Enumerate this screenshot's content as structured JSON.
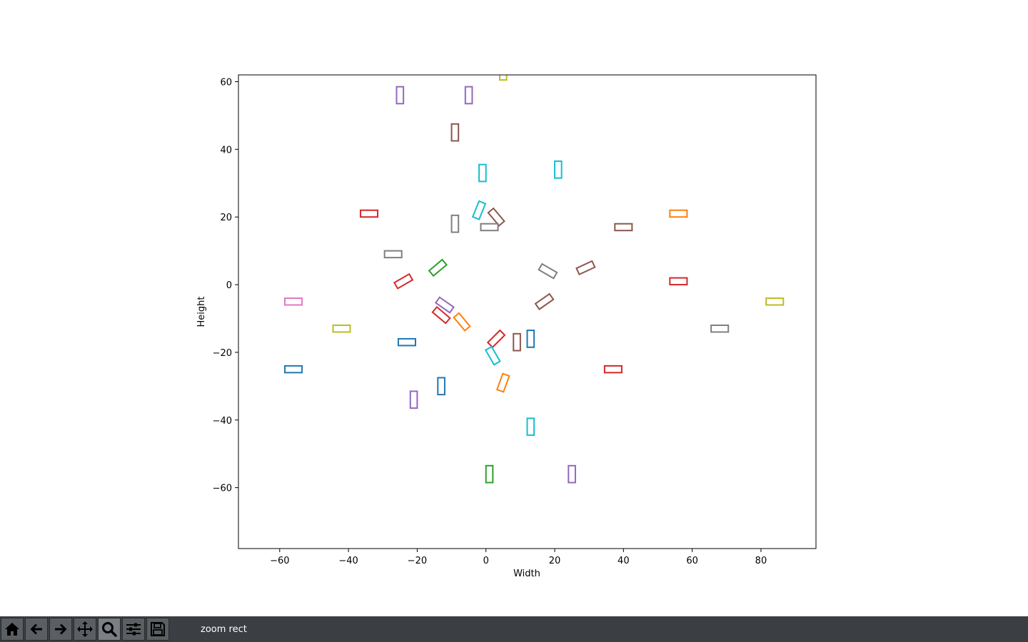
{
  "toolbar": {
    "buttons": [
      {
        "name": "home-button",
        "icon": "home-icon"
      },
      {
        "name": "back-button",
        "icon": "arrow-left-icon"
      },
      {
        "name": "forward-button",
        "icon": "arrow-right-icon"
      },
      {
        "name": "pan-button",
        "icon": "move-icon"
      },
      {
        "name": "zoom-button",
        "icon": "magnifier-icon",
        "active": true
      },
      {
        "name": "configure-subplots-button",
        "icon": "sliders-icon"
      },
      {
        "name": "save-button",
        "icon": "floppy-disk-icon"
      }
    ],
    "mode_text": "zoom rect"
  },
  "chart_data": {
    "type": "scatter",
    "title": "",
    "xlabel": "Width",
    "ylabel": "Height",
    "xlim": [
      -72,
      96
    ],
    "ylim": [
      -78,
      62
    ],
    "xticks": [
      -60,
      -40,
      -20,
      0,
      20,
      40,
      60,
      80
    ],
    "yticks": [
      -60,
      -40,
      -20,
      0,
      20,
      40,
      60
    ],
    "grid": false,
    "legend": null,
    "marker": "rectangle outline",
    "rectangles": [
      {
        "x": 5,
        "y": 62,
        "w": 2,
        "h": 3,
        "angle": 0,
        "color": "#bcbd22"
      },
      {
        "x": -25,
        "y": 56,
        "w": 2,
        "h": 5,
        "angle": 0,
        "color": "#9467bd"
      },
      {
        "x": -5,
        "y": 56,
        "w": 2,
        "h": 5,
        "angle": 0,
        "color": "#9467bd"
      },
      {
        "x": -9,
        "y": 45,
        "w": 2,
        "h": 5,
        "angle": 0,
        "color": "#8c564b"
      },
      {
        "x": 21,
        "y": 34,
        "w": 2,
        "h": 5,
        "angle": 0,
        "color": "#17becf"
      },
      {
        "x": -1,
        "y": 33,
        "w": 2,
        "h": 5,
        "angle": 0,
        "color": "#17becf"
      },
      {
        "x": -2,
        "y": 22,
        "w": 2,
        "h": 5,
        "angle": -22,
        "color": "#17becf"
      },
      {
        "x": 3,
        "y": 20,
        "w": 2,
        "h": 5,
        "angle": 40,
        "color": "#8c564b"
      },
      {
        "x": -34,
        "y": 21,
        "w": 5,
        "h": 2,
        "angle": 0,
        "color": "#d62728"
      },
      {
        "x": -9,
        "y": 18,
        "w": 2,
        "h": 5,
        "angle": 0,
        "color": "#7f7f7f"
      },
      {
        "x": 1,
        "y": 17,
        "w": 5,
        "h": 2,
        "angle": 0,
        "color": "#7f7f7f"
      },
      {
        "x": 56,
        "y": 21,
        "w": 5,
        "h": 2,
        "angle": 0,
        "color": "#ff7f0e"
      },
      {
        "x": 40,
        "y": 17,
        "w": 5,
        "h": 2,
        "angle": 0,
        "color": "#8c564b"
      },
      {
        "x": -27,
        "y": 9,
        "w": 5,
        "h": 2,
        "angle": 0,
        "color": "#7f7f7f"
      },
      {
        "x": -14,
        "y": 5,
        "w": 5,
        "h": 2,
        "angle": 40,
        "color": "#2ca02c"
      },
      {
        "x": 18,
        "y": 4,
        "w": 5,
        "h": 2,
        "angle": -30,
        "color": "#7f7f7f"
      },
      {
        "x": 29,
        "y": 5,
        "w": 5,
        "h": 2,
        "angle": 25,
        "color": "#8c564b"
      },
      {
        "x": -24,
        "y": 1,
        "w": 5,
        "h": 2,
        "angle": 30,
        "color": "#d62728"
      },
      {
        "x": 56,
        "y": 1,
        "w": 5,
        "h": 2,
        "angle": 0,
        "color": "#d62728"
      },
      {
        "x": -56,
        "y": -5,
        "w": 5,
        "h": 2,
        "angle": 0,
        "color": "#e377c2"
      },
      {
        "x": -12,
        "y": -6,
        "w": 5,
        "h": 2,
        "angle": -35,
        "color": "#9467bd"
      },
      {
        "x": 17,
        "y": -5,
        "w": 5,
        "h": 2,
        "angle": 35,
        "color": "#8c564b"
      },
      {
        "x": 84,
        "y": -5,
        "w": 5,
        "h": 2,
        "angle": 0,
        "color": "#bcbd22"
      },
      {
        "x": -13,
        "y": -9,
        "w": 5,
        "h": 2,
        "angle": -40,
        "color": "#d62728"
      },
      {
        "x": -7,
        "y": -11,
        "w": 5,
        "h": 2,
        "angle": -50,
        "color": "#ff7f0e"
      },
      {
        "x": -42,
        "y": -13,
        "w": 5,
        "h": 2,
        "angle": 0,
        "color": "#bcbd22"
      },
      {
        "x": 68,
        "y": -13,
        "w": 5,
        "h": 2,
        "angle": 0,
        "color": "#7f7f7f"
      },
      {
        "x": 13,
        "y": -16,
        "w": 2,
        "h": 5,
        "angle": 0,
        "color": "#1f77b4"
      },
      {
        "x": 9,
        "y": -17,
        "w": 2,
        "h": 5,
        "angle": 0,
        "color": "#8c564b"
      },
      {
        "x": 3,
        "y": -16,
        "w": 5,
        "h": 2,
        "angle": 45,
        "color": "#d62728"
      },
      {
        "x": -23,
        "y": -17,
        "w": 5,
        "h": 2,
        "angle": 0,
        "color": "#1f77b4"
      },
      {
        "x": 2,
        "y": -21,
        "w": 2,
        "h": 5,
        "angle": 30,
        "color": "#17becf"
      },
      {
        "x": -56,
        "y": -25,
        "w": 5,
        "h": 2,
        "angle": 0,
        "color": "#1f77b4"
      },
      {
        "x": 37,
        "y": -25,
        "w": 5,
        "h": 2,
        "angle": 0,
        "color": "#d62728"
      },
      {
        "x": 5,
        "y": -29,
        "w": 2,
        "h": 5,
        "angle": -20,
        "color": "#ff7f0e"
      },
      {
        "x": -13,
        "y": -30,
        "w": 2,
        "h": 5,
        "angle": 0,
        "color": "#1f77b4"
      },
      {
        "x": -21,
        "y": -34,
        "w": 2,
        "h": 5,
        "angle": 0,
        "color": "#9467bd"
      },
      {
        "x": 13,
        "y": -42,
        "w": 2,
        "h": 5,
        "angle": 0,
        "color": "#17becf"
      },
      {
        "x": 1,
        "y": -56,
        "w": 2,
        "h": 5,
        "angle": 0,
        "color": "#2ca02c"
      },
      {
        "x": 25,
        "y": -56,
        "w": 2,
        "h": 5,
        "angle": 0,
        "color": "#9467bd"
      }
    ]
  }
}
